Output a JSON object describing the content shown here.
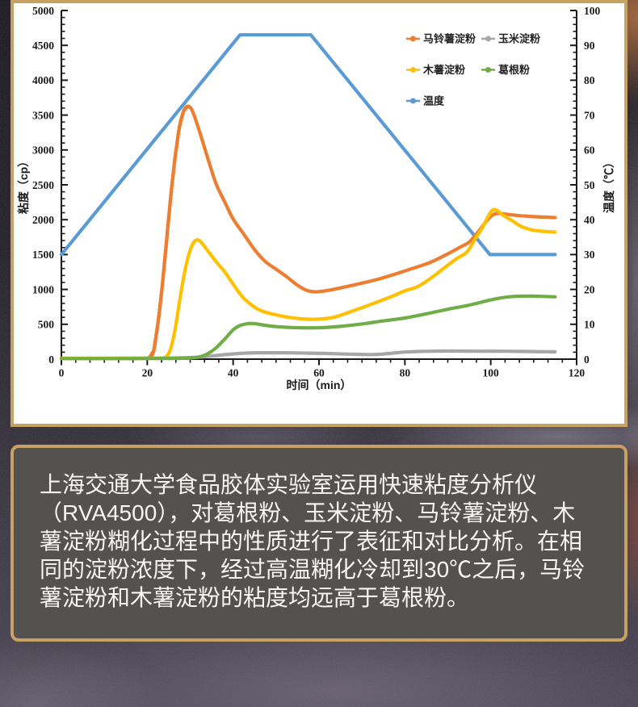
{
  "chart_data": {
    "type": "line",
    "xlabel": "时间（min）",
    "ylabel_left": "粘度（cp）",
    "ylabel_right": "温度（℃）",
    "xlim": [
      0,
      120
    ],
    "ylim_left": [
      0,
      5000
    ],
    "ylim_right": [
      0,
      100
    ],
    "x_ticks": [
      0,
      20,
      40,
      60,
      80,
      100,
      120
    ],
    "y_left_ticks": [
      0,
      500,
      1000,
      1500,
      2000,
      2500,
      3000,
      3500,
      4000,
      4500,
      5000
    ],
    "y_right_ticks": [
      0,
      10,
      20,
      30,
      40,
      50,
      60,
      70,
      80,
      90,
      100
    ],
    "legend_position": "top-right-inside",
    "grid": false,
    "series": [
      {
        "id": "potato-starch",
        "name": "马铃薯淀粉",
        "color": "#ED7D31",
        "axis": "left",
        "beaded_rise": [
          20.5,
          30.2
        ],
        "points": [
          [
            0,
            12
          ],
          [
            4,
            12
          ],
          [
            8,
            12
          ],
          [
            12,
            12
          ],
          [
            16,
            12
          ],
          [
            19,
            14
          ],
          [
            20.5,
            25
          ],
          [
            21.5,
            120
          ],
          [
            22.5,
            520
          ],
          [
            23.5,
            1050
          ],
          [
            24.5,
            1700
          ],
          [
            25.5,
            2350
          ],
          [
            26.5,
            2900
          ],
          [
            27.5,
            3330
          ],
          [
            28.5,
            3560
          ],
          [
            29.5,
            3625
          ],
          [
            30.5,
            3560
          ],
          [
            32,
            3300
          ],
          [
            34,
            2900
          ],
          [
            36,
            2520
          ],
          [
            38,
            2260
          ],
          [
            40,
            2010
          ],
          [
            42.5,
            1790
          ],
          [
            45,
            1570
          ],
          [
            47.5,
            1400
          ],
          [
            50,
            1290
          ],
          [
            52.5,
            1180
          ],
          [
            55,
            1060
          ],
          [
            57,
            990
          ],
          [
            59,
            965
          ],
          [
            62,
            985
          ],
          [
            66,
            1035
          ],
          [
            70,
            1090
          ],
          [
            74,
            1150
          ],
          [
            78,
            1225
          ],
          [
            82,
            1305
          ],
          [
            86,
            1390
          ],
          [
            90,
            1510
          ],
          [
            93,
            1610
          ],
          [
            95,
            1680
          ],
          [
            97,
            1820
          ],
          [
            99,
            1980
          ],
          [
            100.5,
            2070
          ],
          [
            101.7,
            2090
          ],
          [
            103.5,
            2080
          ],
          [
            106,
            2062
          ],
          [
            109,
            2048
          ],
          [
            112,
            2038
          ],
          [
            115,
            2030
          ]
        ]
      },
      {
        "id": "corn-starch",
        "name": "玉米淀粉",
        "color": "#A6A6A6",
        "axis": "left",
        "points": [
          [
            0,
            12
          ],
          [
            5,
            12
          ],
          [
            10,
            12
          ],
          [
            15,
            13
          ],
          [
            20,
            14
          ],
          [
            25,
            16
          ],
          [
            28,
            18
          ],
          [
            31,
            24
          ],
          [
            33,
            32
          ],
          [
            35,
            45
          ],
          [
            37,
            58
          ],
          [
            39,
            70
          ],
          [
            41,
            80
          ],
          [
            43,
            87
          ],
          [
            46,
            91
          ],
          [
            49,
            92
          ],
          [
            52,
            91
          ],
          [
            55,
            89
          ],
          [
            58,
            86
          ],
          [
            61,
            82
          ],
          [
            64,
            78
          ],
          [
            67,
            72
          ],
          [
            70,
            68
          ],
          [
            72,
            66
          ],
          [
            74,
            70
          ],
          [
            76,
            80
          ],
          [
            78,
            92
          ],
          [
            80,
            102
          ],
          [
            83,
            110
          ],
          [
            86,
            114
          ],
          [
            89,
            116
          ],
          [
            92,
            116
          ],
          [
            95,
            115
          ],
          [
            98,
            114
          ],
          [
            101,
            114
          ],
          [
            104,
            113
          ],
          [
            107,
            111
          ],
          [
            110,
            109
          ],
          [
            113,
            106
          ],
          [
            115,
            105
          ]
        ]
      },
      {
        "id": "tapioca-starch",
        "name": "木薯淀粉",
        "color": "#FFC000",
        "axis": "left",
        "points": [
          [
            0,
            10
          ],
          [
            5,
            10
          ],
          [
            10,
            10
          ],
          [
            15,
            10
          ],
          [
            20,
            11
          ],
          [
            23,
            13
          ],
          [
            24.5,
            40
          ],
          [
            25.5,
            160
          ],
          [
            26.5,
            430
          ],
          [
            27.5,
            820
          ],
          [
            28.5,
            1180
          ],
          [
            29.5,
            1460
          ],
          [
            30.5,
            1640
          ],
          [
            31.5,
            1710
          ],
          [
            32.5,
            1680
          ],
          [
            34,
            1560
          ],
          [
            36,
            1400
          ],
          [
            38,
            1255
          ],
          [
            40,
            1075
          ],
          [
            42,
            905
          ],
          [
            44,
            790
          ],
          [
            46,
            710
          ],
          [
            48,
            665
          ],
          [
            50,
            635
          ],
          [
            52,
            610
          ],
          [
            54,
            592
          ],
          [
            56,
            578
          ],
          [
            58,
            572
          ],
          [
            60,
            575
          ],
          [
            62,
            585
          ],
          [
            64,
            610
          ],
          [
            66,
            650
          ],
          [
            68,
            695
          ],
          [
            71,
            760
          ],
          [
            74,
            830
          ],
          [
            77,
            900
          ],
          [
            80,
            980
          ],
          [
            83,
            1040
          ],
          [
            86,
            1160
          ],
          [
            89,
            1300
          ],
          [
            92,
            1440
          ],
          [
            94.5,
            1540
          ],
          [
            96.5,
            1740
          ],
          [
            98,
            1880
          ],
          [
            99.5,
            2060
          ],
          [
            100.5,
            2140
          ],
          [
            101.5,
            2130
          ],
          [
            103,
            2060
          ],
          [
            105,
            1985
          ],
          [
            107,
            1905
          ],
          [
            109,
            1862
          ],
          [
            111,
            1840
          ],
          [
            113,
            1830
          ],
          [
            115,
            1822
          ]
        ]
      },
      {
        "id": "kudzu-root-powder",
        "name": "葛根粉",
        "color": "#70AD47",
        "axis": "left",
        "points": [
          [
            0,
            8
          ],
          [
            5,
            8
          ],
          [
            10,
            8
          ],
          [
            15,
            8
          ],
          [
            20,
            9
          ],
          [
            25,
            10
          ],
          [
            28,
            12
          ],
          [
            30,
            16
          ],
          [
            32,
            30
          ],
          [
            34,
            75
          ],
          [
            36,
            160
          ],
          [
            38,
            285
          ],
          [
            40,
            420
          ],
          [
            41.5,
            480
          ],
          [
            43,
            505
          ],
          [
            44.5,
            512
          ],
          [
            46,
            500
          ],
          [
            48,
            480
          ],
          [
            50,
            467
          ],
          [
            53,
            455
          ],
          [
            56,
            450
          ],
          [
            59,
            449
          ],
          [
            62,
            456
          ],
          [
            65,
            470
          ],
          [
            68,
            490
          ],
          [
            71,
            513
          ],
          [
            74,
            540
          ],
          [
            77,
            565
          ],
          [
            80,
            590
          ],
          [
            85,
            650
          ],
          [
            90,
            715
          ],
          [
            95,
            775
          ],
          [
            98,
            820
          ],
          [
            100,
            850
          ],
          [
            102,
            875
          ],
          [
            104,
            892
          ],
          [
            106,
            902
          ],
          [
            109,
            905
          ],
          [
            112,
            900
          ],
          [
            115,
            893
          ]
        ]
      },
      {
        "id": "temperature",
        "name": "温度",
        "color": "#5B9BD5",
        "axis": "right",
        "straight": true,
        "points": [
          [
            0,
            30
          ],
          [
            41.6,
            93
          ],
          [
            58.1,
            93
          ],
          [
            99.8,
            30
          ],
          [
            115,
            30
          ]
        ]
      }
    ],
    "draw_order": [
      4,
      0,
      1,
      2,
      3
    ]
  },
  "caption": {
    "lines": [
      "上海交通大学食品胶体实验室运用快速粘度分析仪",
      "（RVA4500），对葛根粉、玉米淀粉、马铃薯淀粉、木",
      "薯淀粉糊化过程中的性质进行了表征和对比分析。在相",
      "同的淀粉浓度下，经过高温糊化冷却到30℃之后，马铃",
      "薯淀粉和木薯淀粉的粘度均远高于葛根粉。"
    ]
  },
  "colors": {
    "frame_border": "#C8A265",
    "chart_bg": "#FFFFFF",
    "caption_bg": "#55514E",
    "caption_text": "#F7F6F5",
    "axis": "#1A1A1A"
  }
}
